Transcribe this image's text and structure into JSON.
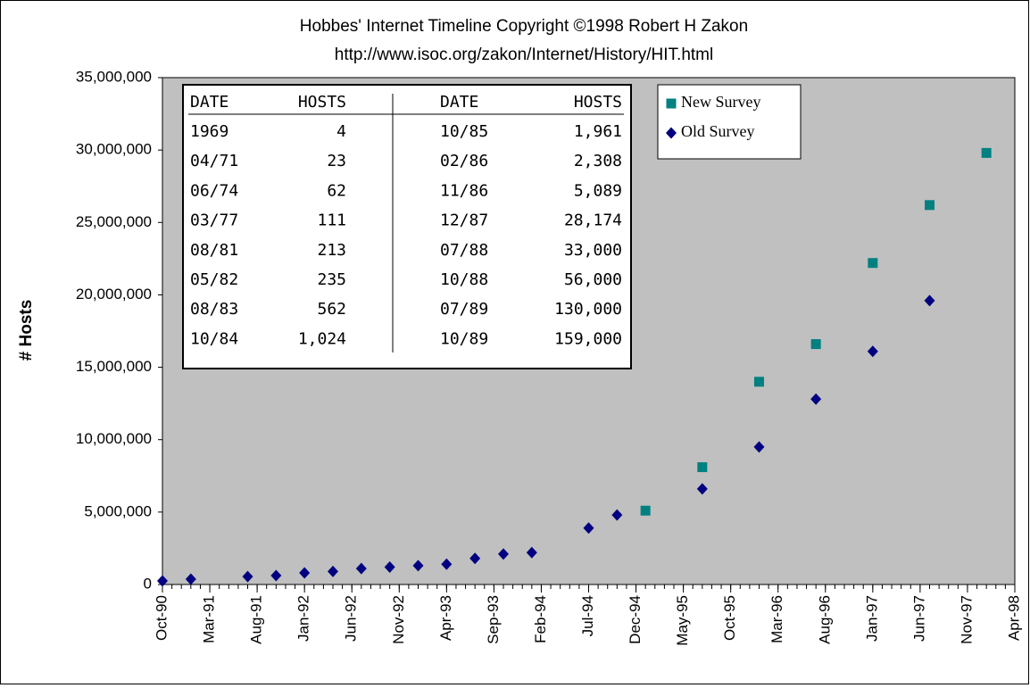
{
  "chart_data": {
    "type": "scatter",
    "title": "Hobbes' Internet Timeline Copyright ©1998 Robert H Zakon",
    "subtitle": "http://www.isoc.org/zakon/Internet/History/HIT.html",
    "y_label": "# Hosts",
    "xlim": [
      "1990-10",
      "1998-04"
    ],
    "xticks": [
      {
        "value": "1990-10",
        "label": "Oct-90"
      },
      {
        "value": "1991-03",
        "label": "Mar-91"
      },
      {
        "value": "1991-08",
        "label": "Aug-91"
      },
      {
        "value": "1992-01",
        "label": "Jan-92"
      },
      {
        "value": "1992-06",
        "label": "Jun-92"
      },
      {
        "value": "1992-11",
        "label": "Nov-92"
      },
      {
        "value": "1993-04",
        "label": "Apr-93"
      },
      {
        "value": "1993-09",
        "label": "Sep-93"
      },
      {
        "value": "1994-02",
        "label": "Feb-94"
      },
      {
        "value": "1994-07",
        "label": "Jul-94"
      },
      {
        "value": "1994-12",
        "label": "Dec-94"
      },
      {
        "value": "1995-05",
        "label": "May-95"
      },
      {
        "value": "1995-10",
        "label": "Oct-95"
      },
      {
        "value": "1996-03",
        "label": "Mar-96"
      },
      {
        "value": "1996-08",
        "label": "Aug-96"
      },
      {
        "value": "1997-01",
        "label": "Jan-97"
      },
      {
        "value": "1997-06",
        "label": "Jun-97"
      },
      {
        "value": "1997-11",
        "label": "Nov-97"
      },
      {
        "value": "1998-04",
        "label": "Apr-98"
      }
    ],
    "ylim": [
      0,
      35000000
    ],
    "yticks": [
      0,
      {
        "value": 5000000,
        "label": "5,000,000"
      },
      {
        "value": 10000000,
        "label": "10,000,000"
      },
      {
        "value": 15000000,
        "label": "15,000,000"
      },
      {
        "value": 20000000,
        "label": "20,000,000"
      },
      {
        "value": 25000000,
        "label": "25,000,000"
      },
      {
        "value": 30000000,
        "label": "30,000,000"
      },
      {
        "value": 35000000,
        "label": "35,000,000"
      }
    ],
    "series": [
      {
        "name": "New Survey",
        "color": "#008080",
        "marker": "square",
        "x": [
          "1995-01",
          "1995-07",
          "1996-01",
          "1996-07",
          "1997-01",
          "1997-07",
          "1998-01"
        ],
        "values": [
          5100000,
          8100000,
          14000000,
          16600000,
          22200000,
          26200000,
          29800000
        ]
      },
      {
        "name": "Old Survey",
        "color": "#000080",
        "marker": "diamond",
        "x": [
          "1990-10",
          "1991-01",
          "1991-07",
          "1991-10",
          "1992-01",
          "1992-04",
          "1992-07",
          "1992-10",
          "1993-01",
          "1993-04",
          "1993-07",
          "1993-10",
          "1994-01",
          "1994-07",
          "1994-10",
          "1995-07",
          "1996-01",
          "1996-07",
          "1997-01",
          "1997-07"
        ],
        "values": [
          250000,
          370000,
          550000,
          620000,
          800000,
          900000,
          1100000,
          1200000,
          1300000,
          1400000,
          1800000,
          2100000,
          2200000,
          3900000,
          4800000,
          6600000,
          9500000,
          12800000,
          16100000,
          19600000
        ]
      }
    ],
    "table": {
      "columns": [
        "DATE",
        "HOSTS",
        "DATE",
        "HOSTS"
      ],
      "rows": [
        [
          "1969",
          "4",
          "10/85",
          "1,961"
        ],
        [
          "04/71",
          "23",
          "02/86",
          "2,308"
        ],
        [
          "06/74",
          "62",
          "11/86",
          "5,089"
        ],
        [
          "03/77",
          "111",
          "12/87",
          "28,174"
        ],
        [
          "08/81",
          "213",
          "07/88",
          "33,000"
        ],
        [
          "05/82",
          "235",
          "10/88",
          "56,000"
        ],
        [
          "08/83",
          "562",
          "07/89",
          "130,000"
        ],
        [
          "10/84",
          "1,024",
          "10/89",
          "159,000"
        ]
      ]
    }
  }
}
